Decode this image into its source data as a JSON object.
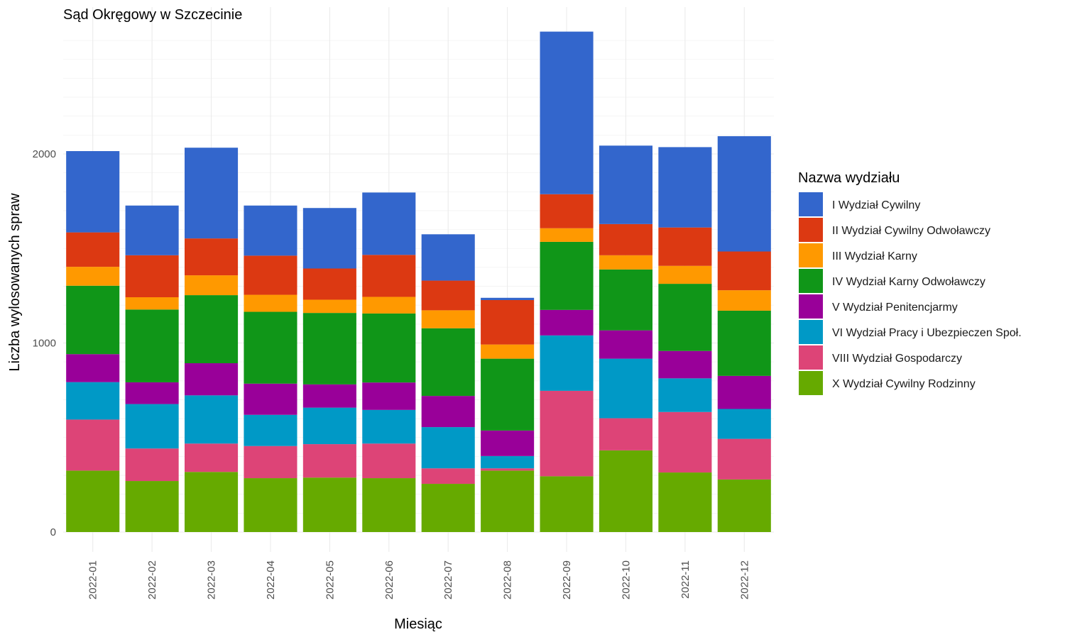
{
  "chart_data": {
    "type": "bar",
    "stacked": true,
    "title": "Sąd Okręgowy w Szczecinie",
    "xlabel": "Miesiąc",
    "ylabel": "Liczba wylosowanych spraw",
    "ylim": [
      0,
      2650
    ],
    "yticks": [
      0,
      1000,
      2000
    ],
    "grid": true,
    "legend_title": "Nazwa wydziału",
    "legend_position": "right",
    "categories": [
      "2022-01",
      "2022-02",
      "2022-03",
      "2022-04",
      "2022-05",
      "2022-06",
      "2022-07",
      "2022-08",
      "2022-09",
      "2022-10",
      "2022-11",
      "2022-12"
    ],
    "series": [
      {
        "name": "X Wydział Cywilny Rodzinny",
        "color": "#66aa00",
        "values": [
          325,
          270,
          318,
          285,
          288,
          285,
          255,
          325,
          295,
          432,
          315,
          278
        ]
      },
      {
        "name": "VIII Wydział Gospodarczy",
        "color": "#dd4477",
        "values": [
          270,
          172,
          150,
          170,
          177,
          183,
          82,
          12,
          452,
          170,
          320,
          215
        ]
      },
      {
        "name": "VI Wydział Pracy i Ubezpieczen Społ.",
        "color": "#0099c6",
        "values": [
          198,
          235,
          255,
          165,
          193,
          178,
          218,
          65,
          293,
          315,
          178,
          158
        ]
      },
      {
        "name": "V Wydział Penitencjarmy",
        "color": "#990099",
        "values": [
          148,
          115,
          170,
          165,
          123,
          145,
          165,
          135,
          135,
          150,
          145,
          175
        ]
      },
      {
        "name": "IV Wydział Karny Odwoławczy",
        "color": "#109618",
        "values": [
          362,
          385,
          360,
          380,
          378,
          365,
          358,
          380,
          360,
          322,
          355,
          345
        ]
      },
      {
        "name": "III Wydział Karny",
        "color": "#ff9900",
        "values": [
          100,
          65,
          105,
          90,
          70,
          88,
          95,
          75,
          72,
          75,
          95,
          108
        ]
      },
      {
        "name": "II Wydział Cywilny Odwoławczy",
        "color": "#dc3912",
        "values": [
          182,
          222,
          195,
          207,
          165,
          222,
          157,
          235,
          180,
          165,
          203,
          205
        ]
      },
      {
        "name": "I Wydział Cywilny",
        "color": "#3366cc",
        "values": [
          430,
          263,
          480,
          265,
          320,
          330,
          245,
          12,
          860,
          415,
          425,
          610
        ]
      }
    ]
  }
}
